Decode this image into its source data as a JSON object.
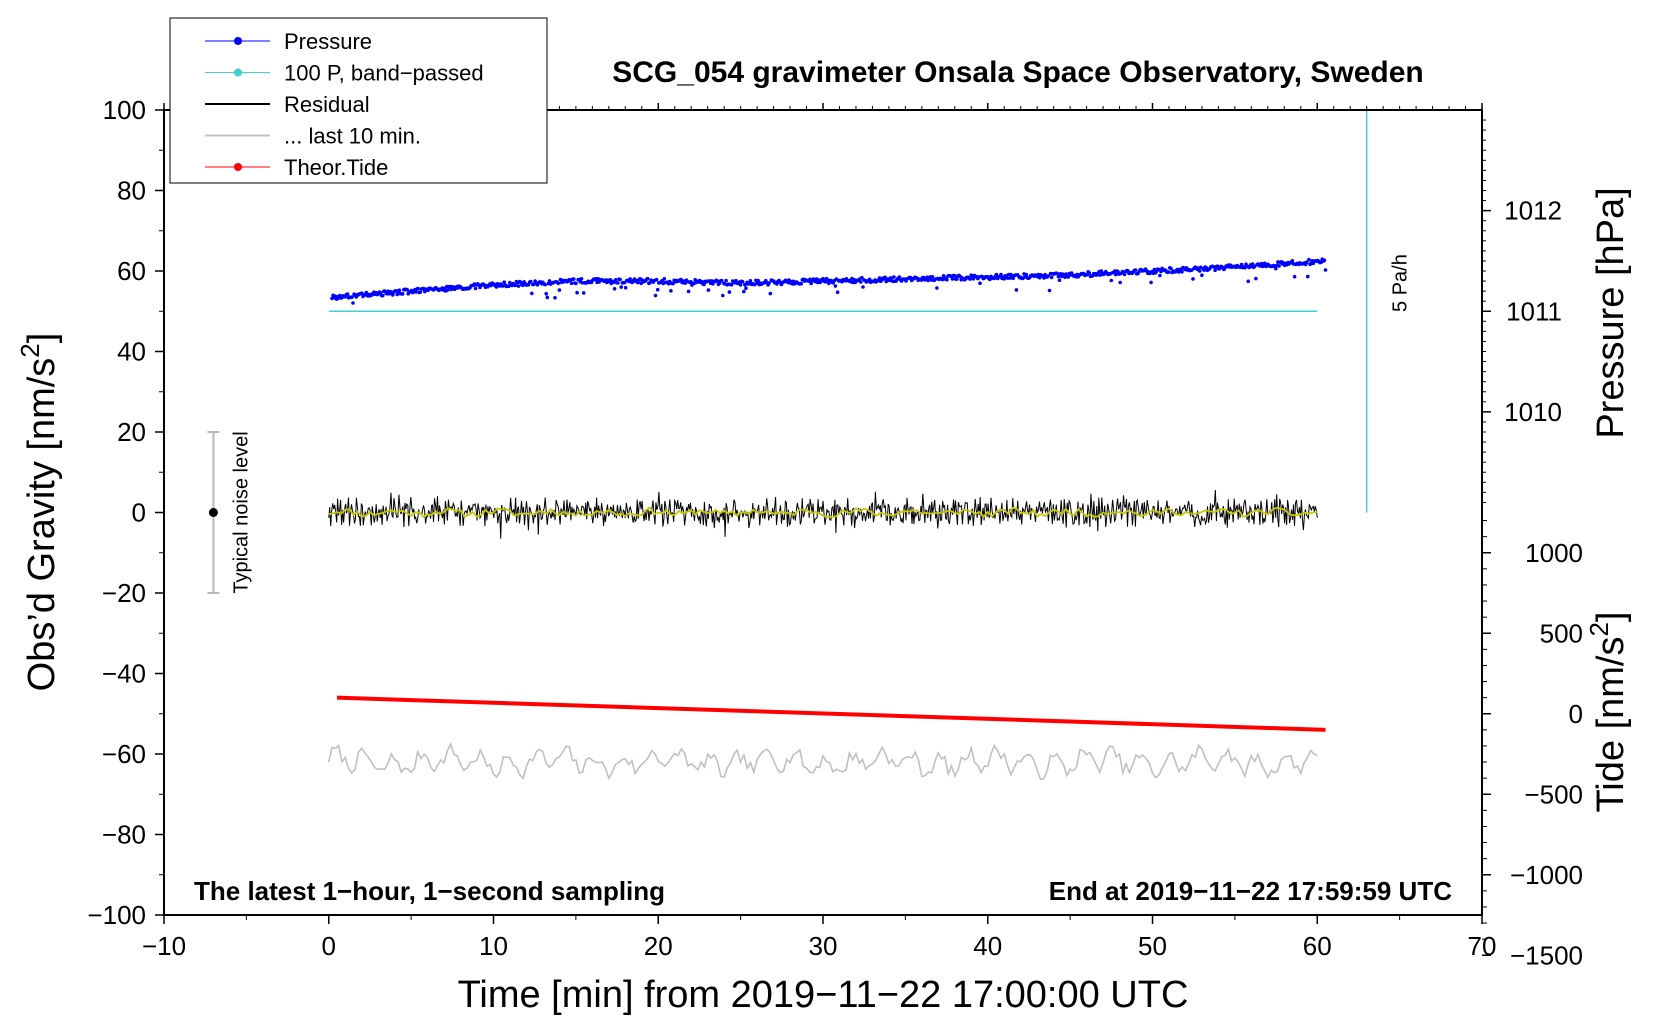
{
  "chart_data": {
    "type": "line",
    "title": "SCG_054 gravimeter Onsala Space Observatory, Sweden",
    "xlabel": "Time [min] from 2019−11−22 17:00:00 UTC",
    "ylabel_base": "Obs’d Gravity [nm/s",
    "ylabel_sup": "2",
    "ylabel_close": "]",
    "xlim": [
      -10,
      70
    ],
    "ylim": [
      -100,
      100
    ],
    "x_ticks": [
      -10,
      0,
      10,
      20,
      30,
      40,
      50,
      60,
      70
    ],
    "x_tick_labels": [
      "−10",
      "0",
      "10",
      "20",
      "30",
      "40",
      "50",
      "60",
      "70"
    ],
    "y_ticks": [
      -100,
      -80,
      -60,
      -40,
      -20,
      0,
      20,
      40,
      60,
      80,
      100
    ],
    "y_tick_labels": [
      "−100",
      "−80",
      "−60",
      "−40",
      "−20",
      "0",
      "20",
      "40",
      "60",
      "80",
      "100"
    ],
    "right_pressure_axis": {
      "label": "Pressure [hPa]",
      "ticks": [
        1010,
        1011,
        1012
      ],
      "tick_labels": [
        "1010",
        "1011",
        "1012"
      ],
      "gravity_at_1011": 50,
      "gravity_per_hpa": 25
    },
    "right_tide_axis": {
      "label_base": "Tide [nm/s",
      "label_sup": "2",
      "label_close": "]",
      "ticks": [
        -1500,
        -1000,
        -500,
        0,
        500,
        1000
      ],
      "tick_labels": [
        "−1500",
        "−1000",
        "−500",
        "0",
        "500",
        "1000"
      ],
      "gravity_at_zero": -50,
      "gravity_per_unit": 0.04
    },
    "series": [
      {
        "name": "Pressure",
        "color": "#0000ff",
        "x": [
          0.2,
          5,
          10,
          15,
          20,
          25,
          30,
          35,
          40,
          45,
          50,
          55,
          60.5
        ],
        "y": [
          53.5,
          55,
          56.5,
          57.5,
          57.5,
          57,
          57.5,
          58,
          58.5,
          59,
          60,
          61,
          62.5
        ]
      },
      {
        "name": "100 P, band−passed",
        "color": "#40d0d0",
        "x": [
          0,
          60
        ],
        "y": [
          50,
          50
        ]
      },
      {
        "name": "Residual",
        "color": "#000000",
        "x": [
          0,
          60
        ],
        "y": [
          0,
          0
        ]
      },
      {
        "name": "... last 10 min.",
        "color": "#c0c0c0",
        "x": [
          0,
          60
        ],
        "y": [
          -62,
          -62
        ]
      },
      {
        "name": "Theor.Tide",
        "color": "#ff0000",
        "x": [
          0.5,
          60.5
        ],
        "y": [
          -46,
          -54
        ]
      }
    ],
    "noise_bar": {
      "label": "Typical noise level",
      "x": -7,
      "y": 0,
      "ylow": -20,
      "yhigh": 20
    },
    "scale_bar": {
      "label": "5 Pa/h",
      "x": 63,
      "ylow": 0,
      "yhigh": 100
    },
    "annotation_left": "The latest 1−hour, 1−second sampling",
    "annotation_right": "End at 2019−11−22 17:59:59 UTC"
  }
}
